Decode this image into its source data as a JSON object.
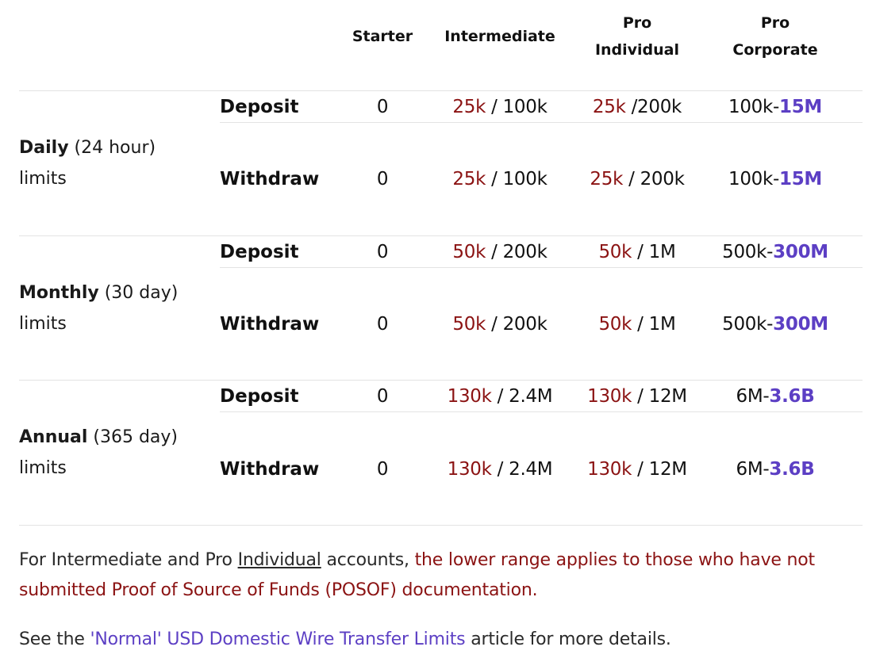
{
  "headers": {
    "starter": "Starter",
    "intermediate": "Intermediate",
    "pro_individual_line1": "Pro",
    "pro_individual_line2": "Individual",
    "pro_corporate_line1": "Pro",
    "pro_corporate_line2": "Corporate"
  },
  "groups": [
    {
      "label_bold": "Daily",
      "label_rest": " (24 hour)",
      "label_line2": "limits",
      "rows": [
        {
          "type": "Deposit",
          "starter": "0",
          "intermediate_low": "25k",
          "intermediate_high": " / 100k",
          "pro_ind_low": "25k",
          "pro_ind_high": " /200k",
          "pro_corp_low": "100k-",
          "pro_corp_high": "15M"
        },
        {
          "type": "Withdraw",
          "starter": "0",
          "intermediate_low": "25k",
          "intermediate_high": " / 100k",
          "pro_ind_low": "25k",
          "pro_ind_high": " / 200k",
          "pro_corp_low": "100k-",
          "pro_corp_high": "15M"
        }
      ]
    },
    {
      "label_bold": "Monthly",
      "label_rest": " (30 day)",
      "label_line2": "limits",
      "rows": [
        {
          "type": "Deposit",
          "starter": "0",
          "intermediate_low": "50k",
          "intermediate_high": " / 200k",
          "pro_ind_low": "50k",
          "pro_ind_high": " / 1M",
          "pro_corp_low": "500k-",
          "pro_corp_high": "300M"
        },
        {
          "type": "Withdraw",
          "starter": "0",
          "intermediate_low": "50k",
          "intermediate_high": " / 200k",
          "pro_ind_low": "50k",
          "pro_ind_high": " / 1M",
          "pro_corp_low": "500k-",
          "pro_corp_high": "300M"
        }
      ]
    },
    {
      "label_bold": "Annual",
      "label_rest": " (365 day)",
      "label_line2": "limits",
      "rows": [
        {
          "type": "Deposit",
          "starter": "0",
          "intermediate_low": "130k",
          "intermediate_high": " / 2.4M",
          "pro_ind_low": "130k",
          "pro_ind_high": " / 12M",
          "pro_corp_low": "6M-",
          "pro_corp_high": "3.6B"
        },
        {
          "type": "Withdraw",
          "starter": "0",
          "intermediate_low": "130k",
          "intermediate_high": " / 2.4M",
          "pro_ind_low": "130k",
          "pro_ind_high": " / 12M",
          "pro_corp_low": "6M-",
          "pro_corp_high": "3.6B"
        }
      ]
    }
  ],
  "footnote1": {
    "part1": "For Intermediate and Pro ",
    "underlined": "Individual",
    "part2": " accounts, ",
    "highlight": "the lower range applies to those who have not submitted Proof of Source of Funds (POSOF) documentation."
  },
  "footnote2": {
    "part1": "See the ",
    "link": "'Normal' USD Domestic Wire Transfer Limits",
    "part2": " article for more details."
  },
  "colors": {
    "low_value": "#8b1313",
    "high_value": "#5c3fc4",
    "divider": "#e3e3e3"
  }
}
